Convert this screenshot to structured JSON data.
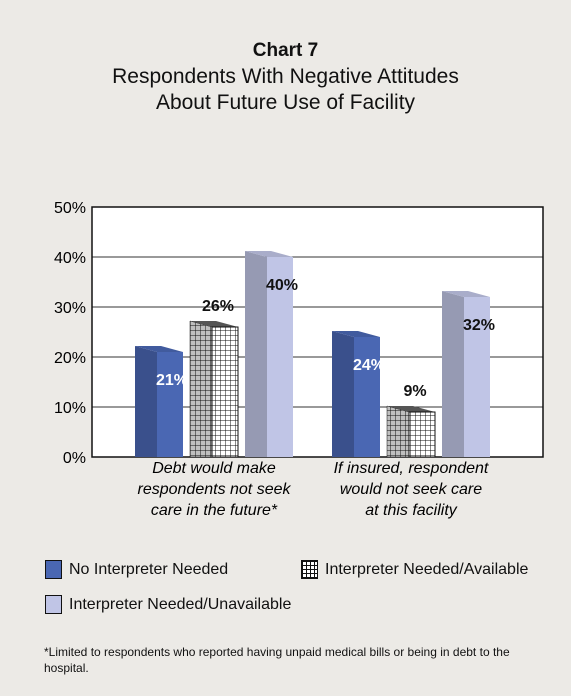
{
  "chart_data": {
    "type": "bar",
    "title": "Chart 7",
    "subtitle": [
      "Respondents With Negative Attitudes",
      "About Future Use of Facility"
    ],
    "categories": [
      [
        "Debt would make",
        "respondents not seek",
        "care in the future*"
      ],
      [
        "If insured, respondent",
        "would not seek care",
        "at this facility"
      ]
    ],
    "series": [
      {
        "name": "No Interpreter Needed",
        "values": [
          21,
          24
        ],
        "color": "#4a67b3",
        "pattern": "solid"
      },
      {
        "name": "Interpreter Needed/Available",
        "values": [
          26,
          9
        ],
        "color": "#ffffff",
        "pattern": "grid"
      },
      {
        "name": "Interpreter Needed/Unavailable",
        "values": [
          40,
          32
        ],
        "color": "#c0c5e6",
        "pattern": "solid"
      }
    ],
    "data_labels": [
      [
        "21%",
        "26%",
        "40%"
      ],
      [
        "24%",
        "9%",
        "32%"
      ]
    ],
    "yticks": [
      "0%",
      "10%",
      "20%",
      "30%",
      "40%",
      "50%"
    ],
    "ylim": [
      0,
      50
    ],
    "grid": true,
    "legend_position": "bottom",
    "style_3d": true
  },
  "footnote": "*Limited to respondents who reported having unpaid medical bills or being in debt to the hospital."
}
